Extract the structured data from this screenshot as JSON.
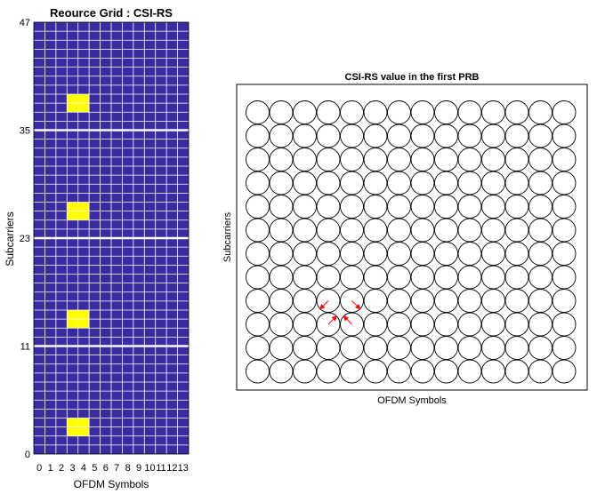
{
  "chart_data": [
    {
      "type": "heatmap",
      "title": "Reource Grid : CSI-RS",
      "xlabel": "OFDM Symbols",
      "ylabel": "Subcarriers",
      "x_ticks": [
        "0",
        "1",
        "2",
        "3",
        "4",
        "5",
        "6",
        "7",
        "8",
        "9",
        "10",
        "11",
        "12",
        "13"
      ],
      "y_ticks": [
        "0",
        "11",
        "23",
        "35",
        "47"
      ],
      "y_tick_values": [
        0,
        11,
        23,
        35,
        47
      ],
      "n_symbols": 14,
      "n_subcarriers": 48,
      "prb_size": 12,
      "background_value": 0,
      "csi_rs_value": 1,
      "csi_rs_symbols": [
        3,
        4
      ],
      "csi_rs_subcarriers": [
        2,
        3,
        14,
        15,
        26,
        27,
        38,
        39
      ],
      "colors": {
        "background": "#3a2ba0",
        "csi_rs": "#ffff00",
        "grid": "#ffffff"
      }
    },
    {
      "type": "scatter",
      "title": "CSI-RS value in the first PRB",
      "xlabel": "OFDM Symbols",
      "ylabel": "Subcarriers",
      "n_cols": 14,
      "n_rows": 12,
      "csi_rs_points": [
        {
          "symbol": 3,
          "subcarrier": 3,
          "re": -0.707,
          "im": -0.707
        },
        {
          "symbol": 3,
          "subcarrier": 2,
          "re": 0.707,
          "im": 0.707
        },
        {
          "symbol": 4,
          "subcarrier": 3,
          "re": 0.707,
          "im": -0.707
        },
        {
          "symbol": 4,
          "subcarrier": 2,
          "re": -0.707,
          "im": 0.707
        }
      ],
      "colors": {
        "circle": "#000000",
        "arrow": "#ff0000"
      }
    }
  ]
}
